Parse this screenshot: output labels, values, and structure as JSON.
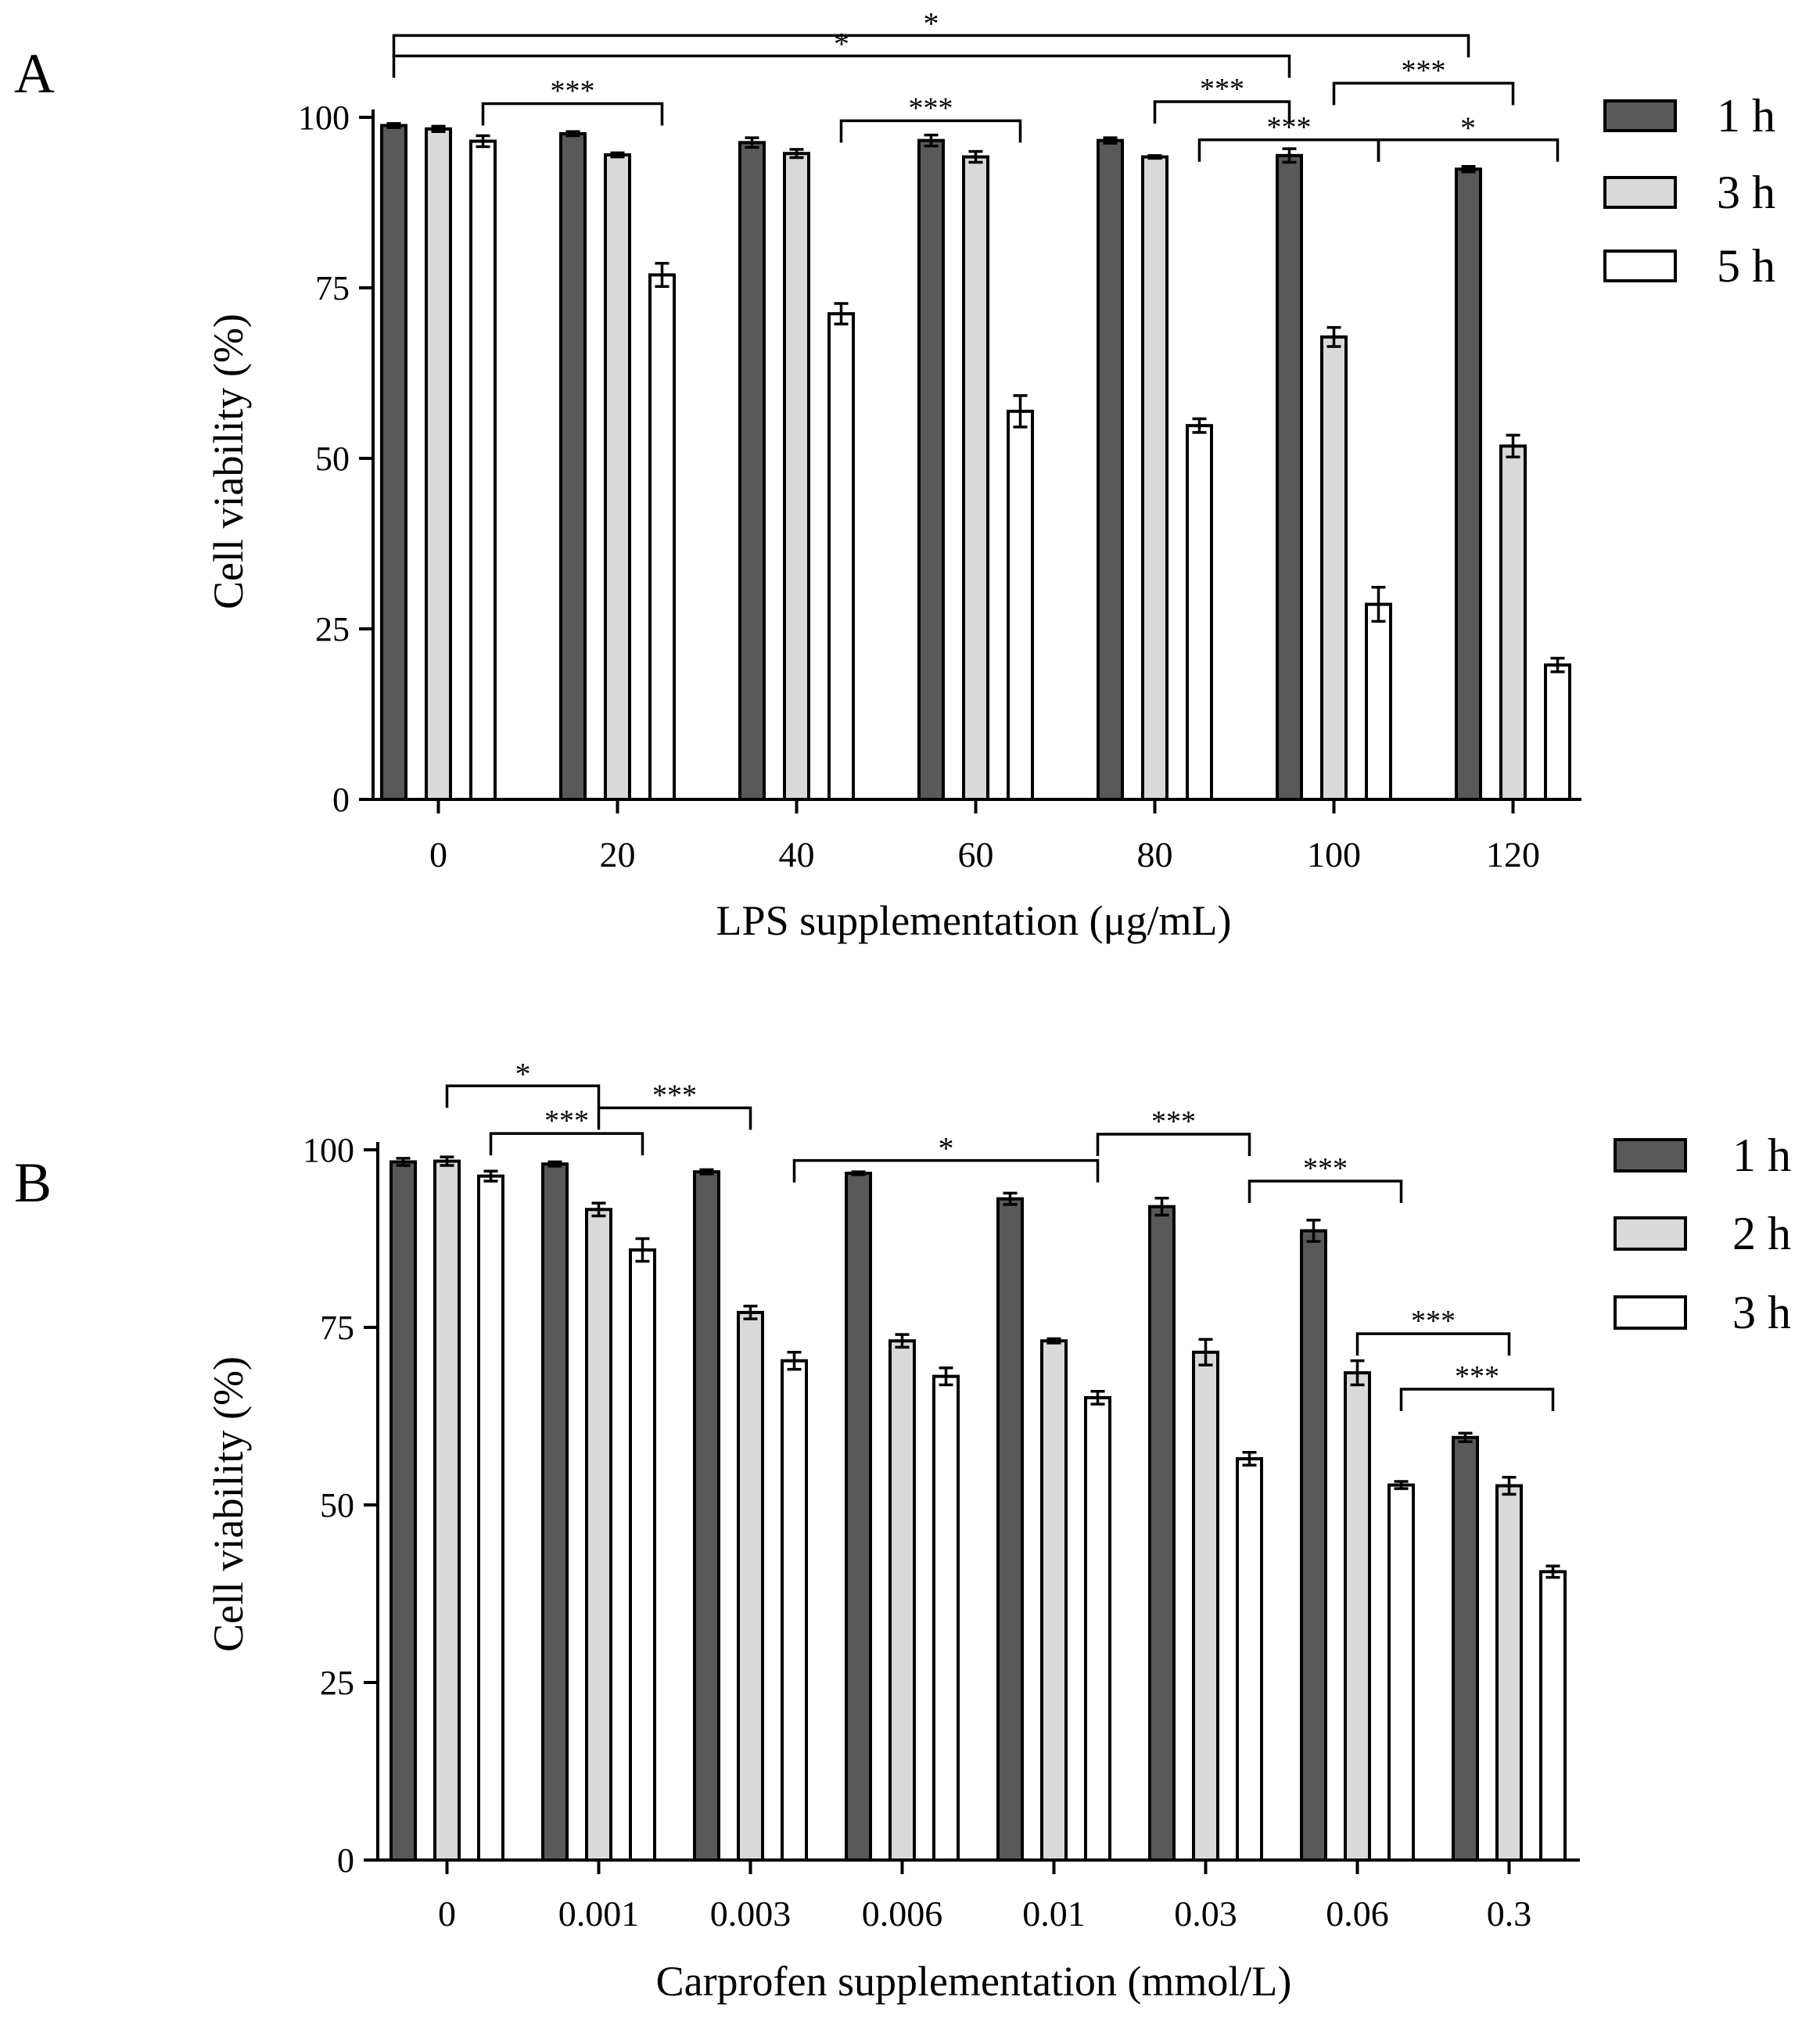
{
  "chart_data": [
    {
      "type": "bar",
      "panel_label": "A",
      "xlabel": "LPS supplementation (μg/mL)",
      "ylabel": "Cell viability (%)",
      "ylim": [
        0,
        100
      ],
      "yticks": [
        "0",
        "25",
        "50",
        "75",
        "100"
      ],
      "categories": [
        "0",
        "20",
        "40",
        "60",
        "80",
        "100",
        "120"
      ],
      "series": [
        {
          "name": "1 h",
          "color": "#595959",
          "values": [
            98.8,
            97.6,
            96.3,
            96.6,
            96.6,
            94.4,
            92.4
          ],
          "errors": [
            0.3,
            0.3,
            0.7,
            0.8,
            0.4,
            1.0,
            0.4
          ]
        },
        {
          "name": "3 h",
          "color": "#d9d9d9",
          "values": [
            98.3,
            94.5,
            94.7,
            94.2,
            94.2,
            67.8,
            51.8
          ],
          "errors": [
            0.4,
            0.3,
            0.6,
            0.8,
            0.2,
            1.4,
            1.6
          ]
        },
        {
          "name": "5 h",
          "color": "#ffffff",
          "values": [
            96.5,
            76.9,
            71.2,
            56.9,
            54.8,
            28.6,
            19.7
          ],
          "errors": [
            0.8,
            1.7,
            1.5,
            2.3,
            1.0,
            2.5,
            1.0
          ]
        }
      ],
      "legend": [
        "1 h",
        "3 h",
        "5 h"
      ],
      "legend_position": "right",
      "annotations": [
        {
          "label": "*",
          "from_category": 0,
          "from_series": 0,
          "to_category": 6,
          "to_series": 0,
          "level": 12
        },
        {
          "label": "*",
          "from_category": 0,
          "from_series": 0,
          "to_category": 5,
          "to_series": 0,
          "level": 9
        },
        {
          "label": "***",
          "from_category": 0,
          "from_series": 2,
          "to_category": 1,
          "to_series": 2,
          "level": 2
        },
        {
          "label": "***",
          "from_category": 2,
          "from_series": 2,
          "to_category": 3,
          "to_series": 2,
          "level": -0.5
        },
        {
          "label": "***",
          "from_category": 4,
          "from_series": 1,
          "to_category": 5,
          "to_series": 0,
          "level": 2.3
        },
        {
          "label": "***",
          "from_category": 5,
          "from_series": 1,
          "to_category": 6,
          "to_series": 1,
          "level": 5
        },
        {
          "label": "***",
          "from_category": 4,
          "from_series": 2,
          "to_category": 5,
          "to_series": 2,
          "level": -3.3
        },
        {
          "label": "*",
          "from_category": 5,
          "from_series": 2,
          "to_category": 6,
          "to_series": 2,
          "level": -3.3
        }
      ]
    },
    {
      "type": "bar",
      "panel_label": "B",
      "xlabel": "Carprofen supplementation (mmol/L)",
      "ylabel": "Cell viability (%)",
      "ylim": [
        0,
        100
      ],
      "yticks": [
        "0",
        "25",
        "50",
        "75",
        "100"
      ],
      "categories": [
        "0",
        "0.001",
        "0.003",
        "0.006",
        "0.01",
        "0.03",
        "0.06",
        "0.3"
      ],
      "series": [
        {
          "name": "1 h",
          "color": "#595959",
          "values": [
            98.3,
            98.0,
            96.9,
            96.7,
            93.1,
            92.0,
            88.6,
            59.5
          ],
          "errors": [
            0.5,
            0.3,
            0.3,
            0.2,
            0.8,
            1.2,
            1.5,
            0.6
          ]
        },
        {
          "name": "2 h",
          "color": "#d9d9d9",
          "values": [
            98.4,
            91.6,
            77.1,
            73.1,
            73.1,
            71.5,
            68.6,
            52.7
          ],
          "errors": [
            0.6,
            0.9,
            0.9,
            0.9,
            0.3,
            1.8,
            1.7,
            1.2
          ]
        },
        {
          "name": "3 h",
          "color": "#ffffff",
          "values": [
            96.3,
            85.9,
            70.3,
            68.1,
            65.1,
            56.5,
            52.8,
            40.6
          ],
          "errors": [
            0.7,
            1.6,
            1.2,
            1.2,
            0.9,
            0.9,
            0.5,
            0.8
          ]
        }
      ],
      "legend": [
        "1 h",
        "2 h",
        "3 h"
      ],
      "legend_position": "right",
      "annotations": [
        {
          "label": "*",
          "from_category": 0,
          "from_series": 1,
          "to_category": 1,
          "to_series": 1,
          "level": 9
        },
        {
          "label": "***",
          "from_category": 1,
          "from_series": 1,
          "to_category": 2,
          "to_series": 1,
          "level": 5.9
        },
        {
          "label": "***",
          "from_category": 0,
          "from_series": 2,
          "to_category": 1,
          "to_series": 2,
          "level": 2.3
        },
        {
          "label": "*",
          "from_category": 2,
          "from_series": 2,
          "to_category": 4,
          "to_series": 2,
          "level": -1.5
        },
        {
          "label": "***",
          "from_category": 4,
          "from_series": 2,
          "to_category": 5,
          "to_series": 2,
          "level": 2.2
        },
        {
          "label": "***",
          "from_category": 5,
          "from_series": 2,
          "to_category": 6,
          "to_series": 2,
          "level": -4.4
        },
        {
          "label": "***",
          "from_category": 6,
          "from_series": 1,
          "to_category": 7,
          "to_series": 1,
          "level": -25.9
        },
        {
          "label": "***",
          "from_category": 6,
          "from_series": 2,
          "to_category": 7,
          "to_series": 2,
          "level": -33.7
        }
      ]
    }
  ]
}
